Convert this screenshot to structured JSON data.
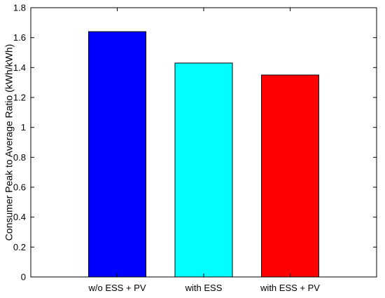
{
  "chart_data": {
    "type": "bar",
    "categories": [
      "w/o ESS + PV",
      "with ESS",
      "with ESS + PV"
    ],
    "values": [
      1.64,
      1.43,
      1.35
    ],
    "colors": [
      "#0000ff",
      "#00ffff",
      "#ff0000"
    ],
    "title": "",
    "xlabel": "",
    "ylabel": "Consumer Peak to Average Ratio (kWh/kWh)",
    "ylim": [
      0,
      1.8
    ],
    "yticks": [
      0,
      0.2,
      0.4,
      0.6,
      0.8,
      1,
      1.2,
      1.4,
      1.6,
      1.8
    ],
    "grid": false,
    "legend": "none",
    "bar_edge_color": "#000000"
  }
}
